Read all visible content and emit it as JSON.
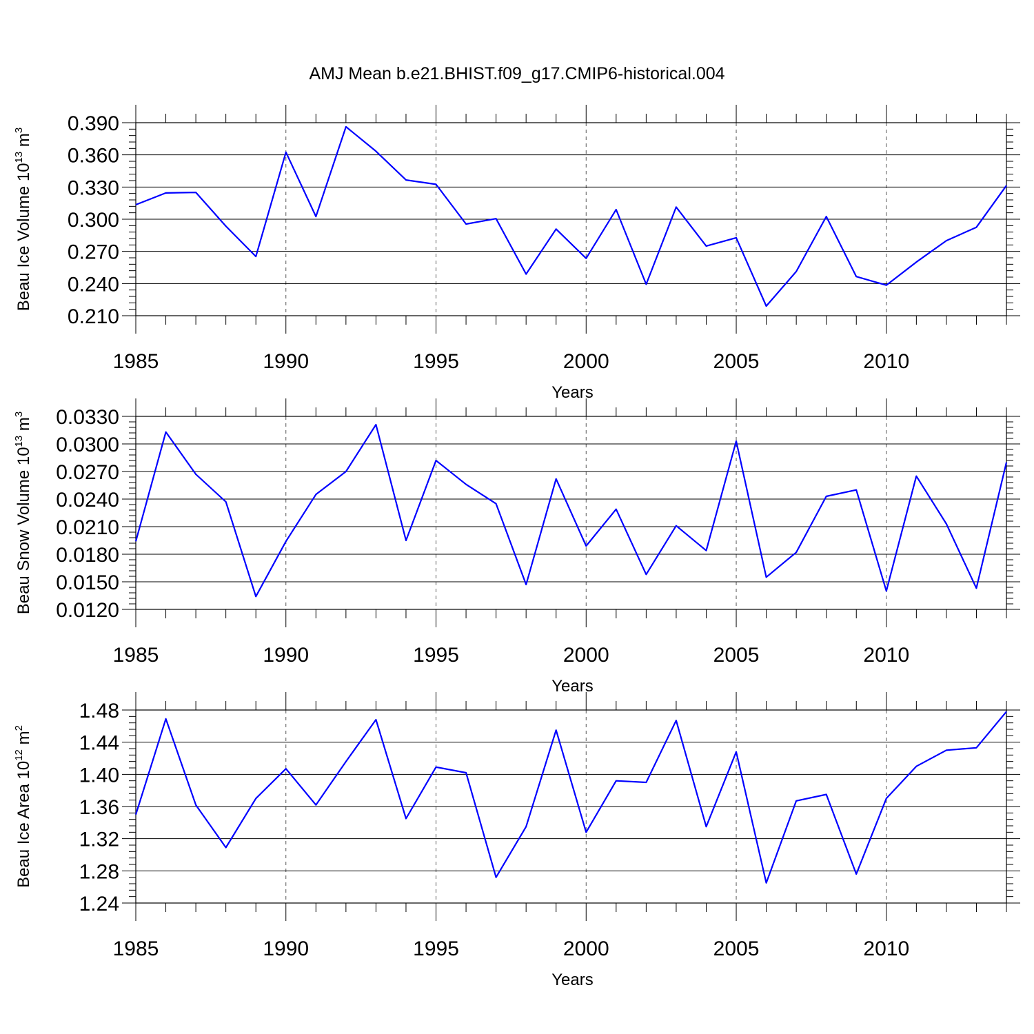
{
  "title": "AMJ Mean b.e21.BHIST.f09_g17.CMIP6-historical.004",
  "chart_data": [
    {
      "type": "line",
      "title": "AMJ Mean b.e21.BHIST.f09_g17.CMIP6-historical.004",
      "ylabel": {
        "main": "Beau Ice Volume 10",
        "exp": "13",
        "unit": " m",
        "unit_exp": "3"
      },
      "xlabel": "Years",
      "xlim": [
        1985,
        2014
      ],
      "ylim": [
        0.21,
        0.39
      ],
      "x_ticks": [
        1985,
        1990,
        1995,
        2000,
        2005,
        2010
      ],
      "x_tick_labels": [
        "1985",
        "1990",
        "1995",
        "2000",
        "2005",
        "2010"
      ],
      "y_ticks": [
        0.21,
        0.24,
        0.27,
        0.3,
        0.33,
        0.36,
        0.39
      ],
      "y_tick_labels": [
        "0.210",
        "0.240",
        "0.270",
        "0.300",
        "0.330",
        "0.360",
        "0.390"
      ],
      "y_minor_step": 0.006,
      "color": "#0000ff",
      "x": [
        1985,
        1986,
        1987,
        1988,
        1989,
        1990,
        1991,
        1992,
        1993,
        1994,
        1995,
        1996,
        1997,
        1998,
        1999,
        2000,
        2001,
        2002,
        2003,
        2004,
        2005,
        2006,
        2007,
        2008,
        2009,
        2010,
        2011,
        2012,
        2013,
        2014
      ],
      "values": [
        0.3135,
        0.3245,
        0.325,
        0.2935,
        0.2652,
        0.3625,
        0.3025,
        0.3862,
        0.3634,
        0.3366,
        0.3325,
        0.2955,
        0.3005,
        0.2488,
        0.2908,
        0.2635,
        0.309,
        0.2393,
        0.3113,
        0.275,
        0.2827,
        0.219,
        0.2512,
        0.3025,
        0.2465,
        0.2385,
        0.26,
        0.28,
        0.2925,
        0.3314
      ]
    },
    {
      "type": "line",
      "ylabel": {
        "main": "Beau Snow Volume 10",
        "exp": "13",
        "unit": " m",
        "unit_exp": "3"
      },
      "xlabel": "Years",
      "xlim": [
        1985,
        2014
      ],
      "ylim": [
        0.012,
        0.033
      ],
      "x_ticks": [
        1985,
        1990,
        1995,
        2000,
        2005,
        2010
      ],
      "x_tick_labels": [
        "1985",
        "1990",
        "1995",
        "2000",
        "2005",
        "2010"
      ],
      "y_ticks": [
        0.012,
        0.015,
        0.018,
        0.021,
        0.024,
        0.027,
        0.03,
        0.033
      ],
      "y_tick_labels": [
        "0.0120",
        "0.0150",
        "0.0180",
        "0.0210",
        "0.0240",
        "0.0270",
        "0.0300",
        "0.0330"
      ],
      "y_minor_step": 0.0006,
      "color": "#0000ff",
      "x": [
        1985,
        1986,
        1987,
        1988,
        1989,
        1990,
        1991,
        1992,
        1993,
        1994,
        1995,
        1996,
        1997,
        1998,
        1999,
        2000,
        2001,
        2002,
        2003,
        2004,
        2005,
        2006,
        2007,
        2008,
        2009,
        2010,
        2011,
        2012,
        2013,
        2014
      ],
      "values": [
        0.0194,
        0.0313,
        0.0267,
        0.0237,
        0.0134,
        0.0194,
        0.0245,
        0.027,
        0.0321,
        0.0195,
        0.0282,
        0.0256,
        0.0235,
        0.0147,
        0.0262,
        0.0189,
        0.0229,
        0.0158,
        0.0211,
        0.0184,
        0.0303,
        0.0155,
        0.0182,
        0.0243,
        0.025,
        0.014,
        0.0265,
        0.0213,
        0.0143,
        0.028
      ]
    },
    {
      "type": "line",
      "ylabel": {
        "main": "Beau Ice Area 10",
        "exp": "12",
        "unit": " m",
        "unit_exp": "2"
      },
      "xlabel": "Years",
      "xlim": [
        1985,
        2014
      ],
      "ylim": [
        1.24,
        1.48
      ],
      "x_ticks": [
        1985,
        1990,
        1995,
        2000,
        2005,
        2010
      ],
      "x_tick_labels": [
        "1985",
        "1990",
        "1995",
        "2000",
        "2005",
        "2010"
      ],
      "y_ticks": [
        1.24,
        1.28,
        1.32,
        1.36,
        1.4,
        1.44,
        1.48
      ],
      "y_tick_labels": [
        "1.24",
        "1.28",
        "1.32",
        "1.36",
        "1.40",
        "1.44",
        "1.48"
      ],
      "y_minor_step": 0.008,
      "color": "#0000ff",
      "x": [
        1985,
        1986,
        1987,
        1988,
        1989,
        1990,
        1991,
        1992,
        1993,
        1994,
        1995,
        1996,
        1997,
        1998,
        1999,
        2000,
        2001,
        2002,
        2003,
        2004,
        2005,
        2006,
        2007,
        2008,
        2009,
        2010,
        2011,
        2012,
        2013,
        2014
      ],
      "values": [
        1.35,
        1.469,
        1.362,
        1.309,
        1.37,
        1.407,
        1.362,
        1.416,
        1.468,
        1.345,
        1.409,
        1.402,
        1.272,
        1.335,
        1.455,
        1.328,
        1.392,
        1.39,
        1.467,
        1.335,
        1.428,
        1.265,
        1.367,
        1.375,
        1.276,
        1.37,
        1.41,
        1.43,
        1.433,
        1.478
      ]
    }
  ]
}
